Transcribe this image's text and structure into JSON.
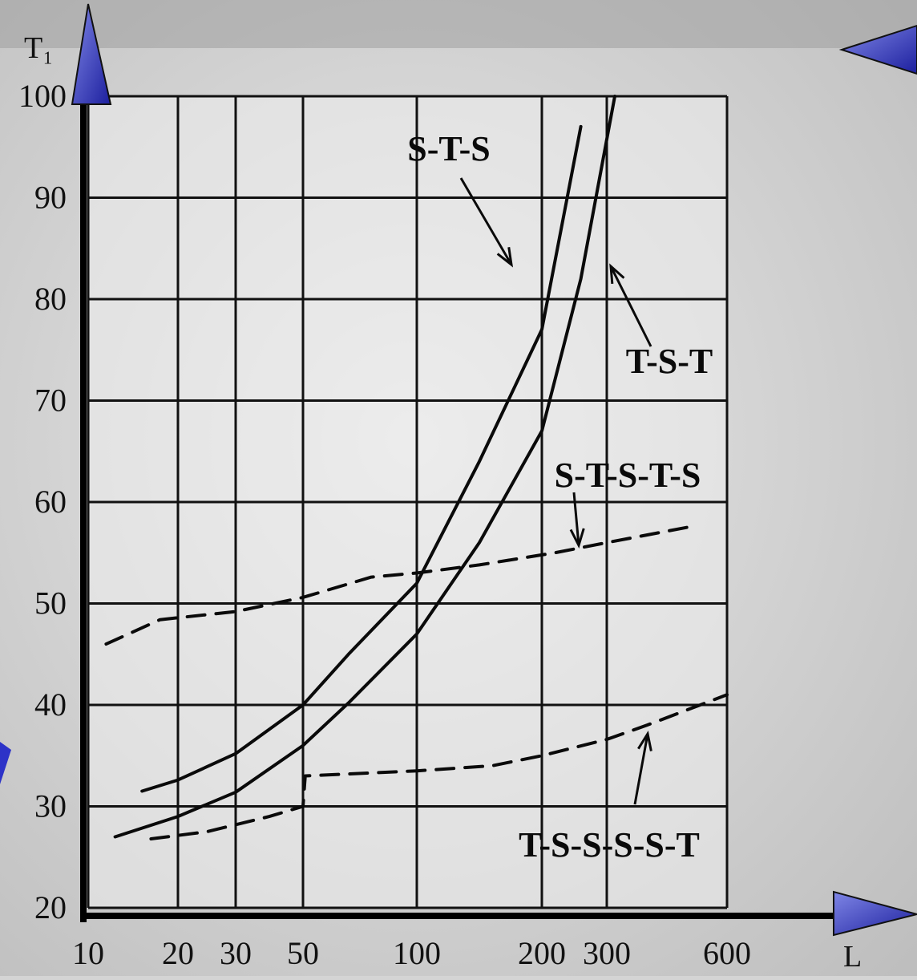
{
  "chart_data": {
    "type": "line",
    "ylabel": "T₁",
    "xlabel": "L",
    "x_tick_labels": [
      "10",
      "20",
      "30",
      "50",
      "100",
      "200",
      "300",
      "600"
    ],
    "y_tick_labels": [
      "20",
      "30",
      "40",
      "50",
      "60",
      "70",
      "80",
      "90",
      "100"
    ],
    "ylim": [
      20,
      100
    ],
    "grid": true,
    "series": [
      {
        "name": "S-T-S",
        "style": "solid",
        "points": [
          [
            16,
            31.5
          ],
          [
            20,
            32.6
          ],
          [
            30,
            35.2
          ],
          [
            40,
            37.6
          ],
          [
            50,
            40
          ],
          [
            70,
            45
          ],
          [
            100,
            52
          ],
          [
            150,
            64
          ],
          [
            200,
            77
          ],
          [
            260,
            97
          ]
        ]
      },
      {
        "name": "T-S-T",
        "style": "solid",
        "points": [
          [
            13,
            27
          ],
          [
            20,
            29
          ],
          [
            30,
            31.4
          ],
          [
            50,
            36
          ],
          [
            70,
            40.2
          ],
          [
            100,
            47
          ],
          [
            150,
            56
          ],
          [
            200,
            67
          ],
          [
            260,
            82
          ],
          [
            320,
            100
          ]
        ]
      },
      {
        "name": "S-T-S-T-S",
        "style": "dashed",
        "points": [
          [
            12,
            46
          ],
          [
            18,
            48.4
          ],
          [
            30,
            49.2
          ],
          [
            50,
            50.6
          ],
          [
            80,
            52.6
          ],
          [
            100,
            53
          ],
          [
            150,
            53.8
          ],
          [
            220,
            55
          ],
          [
            300,
            56
          ],
          [
            500,
            57.5
          ]
        ]
      },
      {
        "name": "T-S-S-S-S-T",
        "style": "dashed",
        "points": [
          [
            17,
            26.8
          ],
          [
            25,
            27.5
          ],
          [
            40,
            29
          ],
          [
            50,
            30
          ],
          [
            51,
            33
          ],
          [
            100,
            33.5
          ],
          [
            160,
            34
          ],
          [
            200,
            35
          ],
          [
            300,
            36.6
          ],
          [
            400,
            38
          ],
          [
            600,
            41
          ]
        ]
      }
    ],
    "annotations": [
      {
        "text": "S-T-S",
        "target": "S-T-S"
      },
      {
        "text": "T-S-T",
        "target": "T-S-T"
      },
      {
        "text": "S-T-S-T-S",
        "target": "S-T-S-T-S"
      },
      {
        "text": "T-S-S-S-S-T",
        "target": "T-S-S-S-S-T"
      }
    ]
  }
}
